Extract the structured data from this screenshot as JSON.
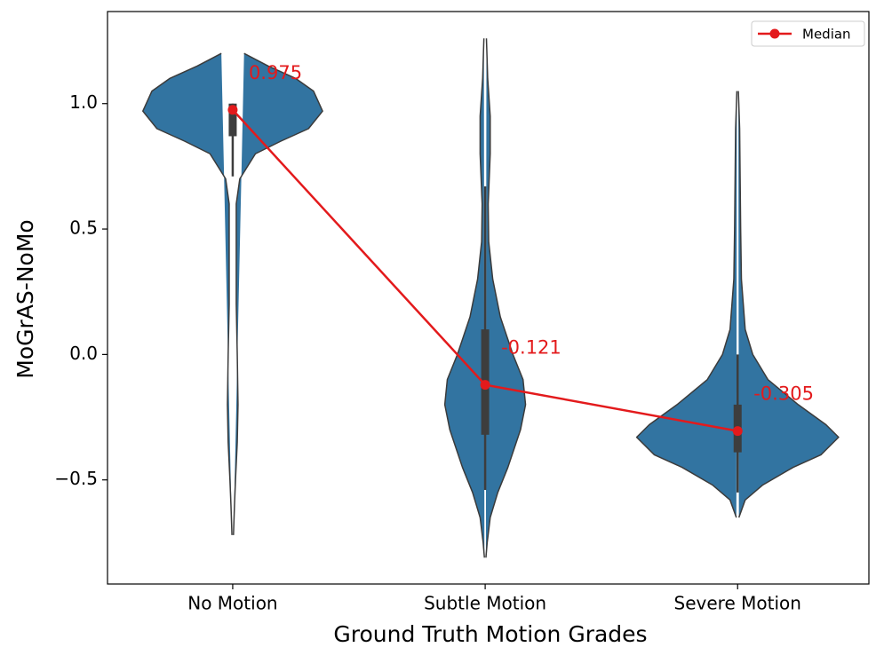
{
  "chart_data": {
    "type": "violin",
    "x_label": "Ground Truth Motion Grades",
    "y_label": "MoGrAS-NoMo",
    "categories": [
      "No Motion",
      "Subtle Motion",
      "Severe Motion"
    ],
    "xlim": [
      -0.496,
      2.52
    ],
    "ylim": [
      -0.915,
      1.367
    ],
    "yticks": [
      {
        "value": -0.5,
        "label": "−0.5"
      },
      {
        "value": 0,
        "label": "0.0"
      },
      0.5,
      {
        "value": 1,
        "label": "1.0"
      }
    ],
    "violin_color": "#3274a1",
    "box_color": "#3d3d3d",
    "violins": [
      {
        "y": [
          1.2,
          1.15,
          1.1,
          1.05,
          0.97,
          0.9,
          0.85,
          0.8,
          0.7,
          0.6,
          0.4,
          0.2,
          0.0,
          -0.2,
          -0.35,
          -0.5,
          -0.6,
          -0.72
        ],
        "width": [
          0.045,
          0.14,
          0.25,
          0.32,
          0.356,
          0.3,
          0.19,
          0.09,
          0.028,
          0.014,
          0.014,
          0.014,
          0.018,
          0.021,
          0.018,
          0.011,
          0.007,
          0.003
        ],
        "whisker": [
          0.71,
          1.0
        ],
        "box": [
          0.87,
          1.0
        ]
      },
      {
        "y": [
          1.26,
          1.1,
          0.95,
          0.8,
          0.6,
          0.45,
          0.3,
          0.15,
          0.0,
          -0.1,
          -0.2,
          -0.3,
          -0.45,
          -0.55,
          -0.65,
          -0.75,
          -0.81
        ],
        "width": [
          0.005,
          0.01,
          0.02,
          0.02,
          0.012,
          0.014,
          0.03,
          0.06,
          0.11,
          0.15,
          0.16,
          0.14,
          0.09,
          0.05,
          0.02,
          0.008,
          0.003
        ],
        "whisker": [
          -0.54,
          0.67
        ],
        "box": [
          -0.32,
          0.1
        ]
      },
      {
        "y": [
          1.05,
          0.9,
          0.7,
          0.5,
          0.3,
          0.1,
          0.0,
          -0.1,
          -0.2,
          -0.28,
          -0.33,
          -0.4,
          -0.45,
          -0.52,
          -0.58,
          -0.65
        ],
        "width": [
          0.003,
          0.008,
          0.01,
          0.012,
          0.015,
          0.03,
          0.06,
          0.12,
          0.24,
          0.35,
          0.4,
          0.33,
          0.22,
          0.1,
          0.03,
          0.005
        ],
        "whisker": [
          -0.55,
          0.0
        ],
        "box": [
          -0.39,
          -0.2
        ]
      }
    ],
    "series": [
      {
        "name": "Median",
        "color": "#e31a1c",
        "values": [
          0.975,
          -0.121,
          -0.305
        ],
        "value_labels": [
          "0.975",
          "-0.121",
          "-0.305"
        ]
      }
    ],
    "legend": "upper right"
  }
}
